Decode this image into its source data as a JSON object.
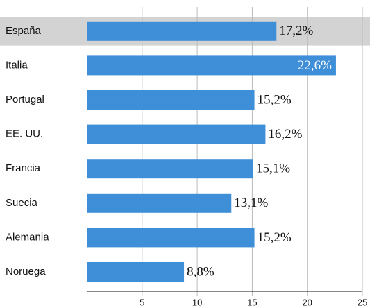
{
  "chart_data": {
    "type": "bar",
    "orientation": "horizontal",
    "categories": [
      "España",
      "Italia",
      "Portugal",
      "EE. UU.",
      "Francia",
      "Suecia",
      "Alemania",
      "Noruega"
    ],
    "values": [
      17.2,
      22.6,
      15.2,
      16.2,
      15.1,
      13.1,
      15.2,
      8.8
    ],
    "value_labels": [
      "17,2%",
      "22,6%",
      "15,2%",
      "16,2%",
      "15,1%",
      "13,1%",
      "15,2%",
      "8,8%"
    ],
    "color": "#3f8fd8",
    "highlight": "España",
    "highlight_color": "#d3d3d3",
    "xlim": [
      0,
      25
    ],
    "xticks": [
      5,
      10,
      15,
      20,
      25
    ],
    "grid": true
  }
}
